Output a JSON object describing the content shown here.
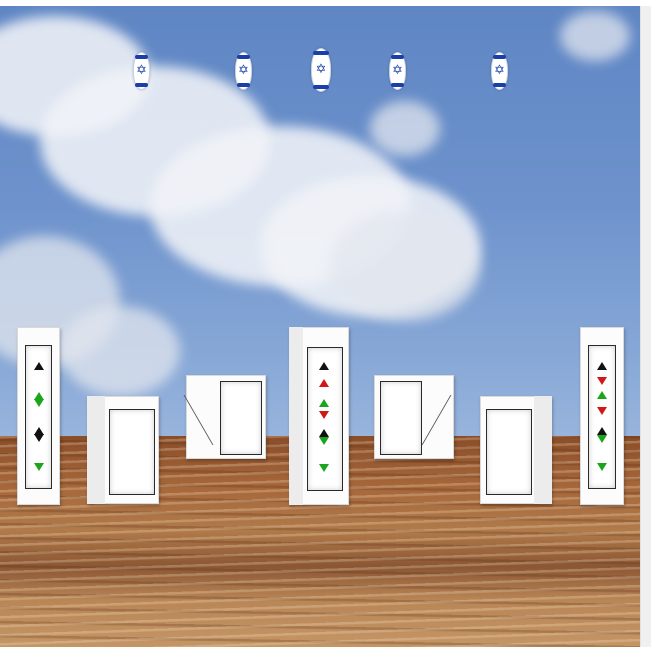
{
  "scene": {
    "sky_color": "#6d92cc",
    "ground_color": "#a7683b",
    "lantern_icon": "star-of-david-icon",
    "lantern_colors": [
      "#ffffff",
      "#1a3fa8"
    ],
    "lantern_count": 5,
    "flag_colors": [
      "#111111",
      "#ffffff",
      "#1aa51a",
      "#d11818"
    ]
  }
}
